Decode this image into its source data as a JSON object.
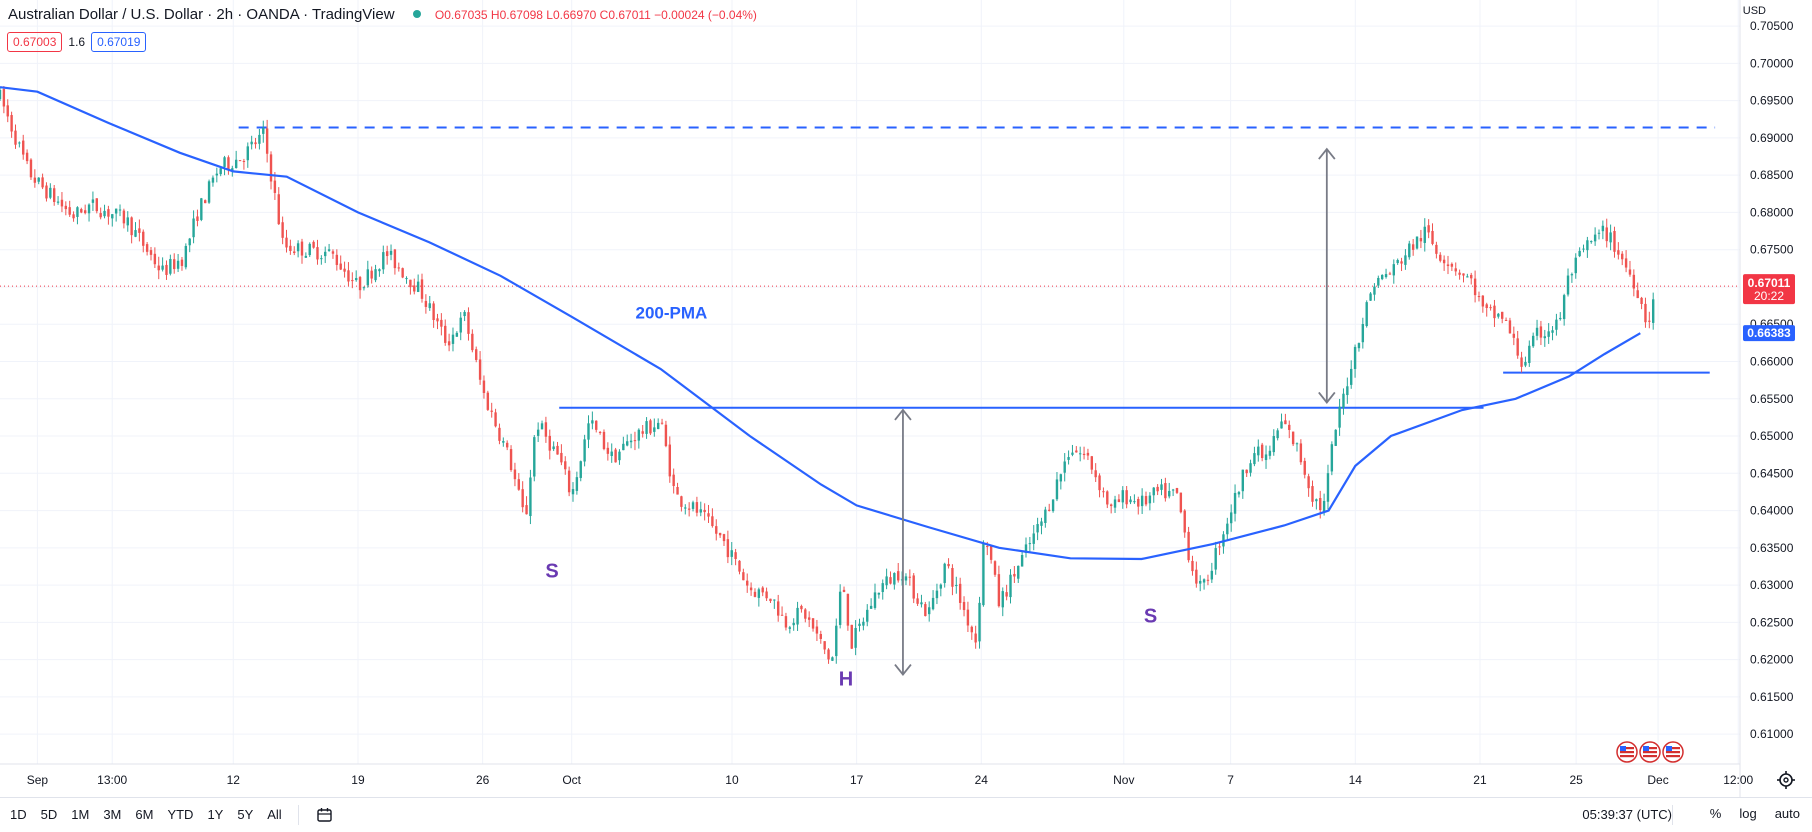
{
  "header": {
    "title": "Australian Dollar / U.S. Dollar · 2h · OANDA · TradingView",
    "ohlc": "O0.67035 H0.67098 L0.66970 C0.67011 −0.00024 (−0.04%)",
    "bid": "0.67003",
    "spread": "1.6",
    "ask": "0.67019",
    "currency": "USD"
  },
  "bottom": {
    "ranges": [
      "1D",
      "5D",
      "1M",
      "3M",
      "6M",
      "YTD",
      "1Y",
      "5Y",
      "All"
    ],
    "time": "05:39:37 (UTC)",
    "percent": "%",
    "log": "log",
    "auto": "auto"
  },
  "colors": {
    "up": "#26a69a",
    "down": "#ef5350",
    "line": "#2962ff",
    "arrow": "#787b86",
    "pattern_text": "#6a3ab2",
    "price_label": "#f23645"
  },
  "chart_data": {
    "type": "candlestick",
    "title": "Australian Dollar / U.S. Dollar · 2h · OANDA",
    "ylim": [
      0.606,
      0.7085
    ],
    "y_ticks": [
      "0.70500",
      "0.70000",
      "0.69500",
      "0.69000",
      "0.68500",
      "0.68000",
      "0.67500",
      "0.67000",
      "0.66500",
      "0.66000",
      "0.65500",
      "0.65000",
      "0.64500",
      "0.64000",
      "0.63500",
      "0.63000",
      "0.62500",
      "0.62000",
      "0.61500",
      "0.61000"
    ],
    "x_range_days": [
      -2.1,
      95.6
    ],
    "x_ticks": [
      {
        "label": "Sep",
        "day": 0
      },
      {
        "label": "13:00",
        "day": 4.2
      },
      {
        "label": "12",
        "day": 11
      },
      {
        "label": "19",
        "day": 18
      },
      {
        "label": "26",
        "day": 25
      },
      {
        "label": "Oct",
        "day": 30
      },
      {
        "label": "10",
        "day": 39
      },
      {
        "label": "17",
        "day": 46
      },
      {
        "label": "24",
        "day": 53
      },
      {
        "label": "Nov",
        "day": 61
      },
      {
        "label": "7",
        "day": 67
      },
      {
        "label": "14",
        "day": 74
      },
      {
        "label": "21",
        "day": 81
      },
      {
        "label": "25",
        "day": 86.4
      },
      {
        "label": "Dec",
        "day": 91
      },
      {
        "label": "12:00",
        "day": 95.5
      }
    ],
    "price_path": [
      [
        -2.1,
        0.6955
      ],
      [
        -0.5,
        0.6855
      ],
      [
        0,
        0.684
      ],
      [
        2,
        0.6795
      ],
      [
        3,
        0.681
      ],
      [
        5,
        0.679
      ],
      [
        7,
        0.672
      ],
      [
        8.2,
        0.674
      ],
      [
        9,
        0.68
      ],
      [
        10.2,
        0.686
      ],
      [
        11.5,
        0.6875
      ],
      [
        12.7,
        0.6905
      ],
      [
        13.2,
        0.684
      ],
      [
        13.8,
        0.6755
      ],
      [
        15,
        0.675
      ],
      [
        16.5,
        0.6745
      ],
      [
        18,
        0.67
      ],
      [
        19.6,
        0.6745
      ],
      [
        21.5,
        0.6695
      ],
      [
        23,
        0.6625
      ],
      [
        24,
        0.666
      ],
      [
        25,
        0.656
      ],
      [
        26.5,
        0.647
      ],
      [
        27.4,
        0.6385
      ],
      [
        28,
        0.652
      ],
      [
        29.3,
        0.647
      ],
      [
        30,
        0.642
      ],
      [
        31,
        0.652
      ],
      [
        32.3,
        0.647
      ],
      [
        33.5,
        0.65
      ],
      [
        35,
        0.652
      ],
      [
        35.8,
        0.642
      ],
      [
        37,
        0.64
      ],
      [
        38.5,
        0.636
      ],
      [
        40,
        0.6295
      ],
      [
        41.2,
        0.6285
      ],
      [
        42,
        0.625
      ],
      [
        43,
        0.6265
      ],
      [
        44.6,
        0.6195
      ],
      [
        45.2,
        0.631
      ],
      [
        45.7,
        0.622
      ],
      [
        47.2,
        0.6295
      ],
      [
        48.5,
        0.632
      ],
      [
        50,
        0.626
      ],
      [
        51,
        0.633
      ],
      [
        52.7,
        0.6225
      ],
      [
        53.2,
        0.6375
      ],
      [
        54,
        0.6275
      ],
      [
        55.6,
        0.635
      ],
      [
        56.5,
        0.639
      ],
      [
        58,
        0.6485
      ],
      [
        59,
        0.647
      ],
      [
        60.3,
        0.64
      ],
      [
        61,
        0.642
      ],
      [
        62,
        0.641
      ],
      [
        63,
        0.6425
      ],
      [
        64,
        0.642
      ],
      [
        64.8,
        0.6325
      ],
      [
        65.4,
        0.629
      ],
      [
        66.4,
        0.636
      ],
      [
        67.3,
        0.642
      ],
      [
        68.2,
        0.648
      ],
      [
        69,
        0.647
      ],
      [
        69.9,
        0.652
      ],
      [
        70.8,
        0.648
      ],
      [
        71.6,
        0.642
      ],
      [
        72.2,
        0.64
      ],
      [
        72.8,
        0.65
      ],
      [
        73.8,
        0.66
      ],
      [
        75,
        0.6705
      ],
      [
        76,
        0.672
      ],
      [
        77,
        0.675
      ],
      [
        78,
        0.6775
      ],
      [
        78.5,
        0.675
      ],
      [
        79.7,
        0.6725
      ],
      [
        80.6,
        0.6705
      ],
      [
        81.2,
        0.6665
      ],
      [
        82.3,
        0.666
      ],
      [
        83.4,
        0.6595
      ],
      [
        84.2,
        0.6635
      ],
      [
        85.4,
        0.665
      ],
      [
        86,
        0.6715
      ],
      [
        87,
        0.6755
      ],
      [
        88,
        0.6775
      ],
      [
        88.7,
        0.675
      ],
      [
        89.8,
        0.67
      ],
      [
        90.4,
        0.665
      ],
      [
        90.9,
        0.67
      ]
    ],
    "pma_200": {
      "label": "200-PMA",
      "points": [
        [
          -2.1,
          0.6968
        ],
        [
          0,
          0.6962
        ],
        [
          4,
          0.692
        ],
        [
          8,
          0.688
        ],
        [
          11,
          0.6855
        ],
        [
          14,
          0.6848
        ],
        [
          18,
          0.68
        ],
        [
          22,
          0.676
        ],
        [
          26,
          0.6715
        ],
        [
          30,
          0.666
        ],
        [
          35,
          0.659
        ],
        [
          40,
          0.65
        ],
        [
          44,
          0.6435
        ],
        [
          46,
          0.6407
        ],
        [
          50,
          0.6378
        ],
        [
          54,
          0.635
        ],
        [
          58,
          0.6336
        ],
        [
          62,
          0.6335
        ],
        [
          66,
          0.6355
        ],
        [
          70,
          0.638
        ],
        [
          72.5,
          0.64
        ],
        [
          74,
          0.646
        ],
        [
          76,
          0.65
        ],
        [
          80,
          0.6535
        ],
        [
          83,
          0.655
        ],
        [
          86,
          0.658
        ],
        [
          88,
          0.661
        ],
        [
          90,
          0.6638
        ]
      ],
      "last_value": "0.66383"
    },
    "last_price": {
      "value": "0.67011",
      "timer": "20:22"
    },
    "neckline": {
      "from_day": 29.3,
      "to_day": 81.2,
      "value": 0.6538
    },
    "target_line": {
      "from_day": 11.3,
      "to_day": 94.2,
      "value": 0.6914,
      "style": "dashed"
    },
    "support_line": {
      "from_day": 82.3,
      "to_day": 93.9,
      "value": 0.6585
    },
    "arrows": [
      {
        "day": 48.6,
        "from": 0.6535,
        "to": 0.618
      },
      {
        "day": 72.4,
        "from": 0.6885,
        "to": 0.6545
      }
    ],
    "annotations": [
      {
        "text": "200-PMA",
        "day": 35.6,
        "value": 0.6658,
        "color": "#2962ff"
      },
      {
        "text": "S",
        "day": 28.9,
        "value": 0.631,
        "color": "#6a3ab2"
      },
      {
        "text": "H",
        "day": 45.4,
        "value": 0.6165,
        "color": "#6a3ab2"
      },
      {
        "text": "S",
        "day": 62.5,
        "value": 0.625,
        "color": "#6a3ab2"
      }
    ]
  }
}
